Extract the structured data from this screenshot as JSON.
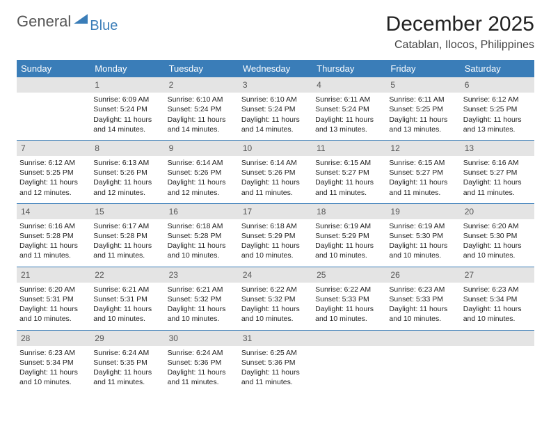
{
  "brand": {
    "part1": "General",
    "part2": "Blue"
  },
  "title": "December 2025",
  "subtitle": "Catablan, Ilocos, Philippines",
  "colors": {
    "accent": "#3a7db8",
    "header_bg": "#3a7db8",
    "daynum_bg": "#e4e4e4",
    "text": "#222222",
    "bg": "#ffffff"
  },
  "fonts": {
    "title_size": 30,
    "subtitle_size": 16,
    "header_size": 13,
    "cell_size": 10.5
  },
  "day_headers": [
    "Sunday",
    "Monday",
    "Tuesday",
    "Wednesday",
    "Thursday",
    "Friday",
    "Saturday"
  ],
  "weeks": [
    {
      "nums": [
        "",
        "1",
        "2",
        "3",
        "4",
        "5",
        "6"
      ],
      "cells": [
        {
          "sunrise": "",
          "sunset": "",
          "daylight": ""
        },
        {
          "sunrise": "Sunrise: 6:09 AM",
          "sunset": "Sunset: 5:24 PM",
          "daylight": "Daylight: 11 hours and 14 minutes."
        },
        {
          "sunrise": "Sunrise: 6:10 AM",
          "sunset": "Sunset: 5:24 PM",
          "daylight": "Daylight: 11 hours and 14 minutes."
        },
        {
          "sunrise": "Sunrise: 6:10 AM",
          "sunset": "Sunset: 5:24 PM",
          "daylight": "Daylight: 11 hours and 14 minutes."
        },
        {
          "sunrise": "Sunrise: 6:11 AM",
          "sunset": "Sunset: 5:24 PM",
          "daylight": "Daylight: 11 hours and 13 minutes."
        },
        {
          "sunrise": "Sunrise: 6:11 AM",
          "sunset": "Sunset: 5:25 PM",
          "daylight": "Daylight: 11 hours and 13 minutes."
        },
        {
          "sunrise": "Sunrise: 6:12 AM",
          "sunset": "Sunset: 5:25 PM",
          "daylight": "Daylight: 11 hours and 13 minutes."
        }
      ]
    },
    {
      "nums": [
        "7",
        "8",
        "9",
        "10",
        "11",
        "12",
        "13"
      ],
      "cells": [
        {
          "sunrise": "Sunrise: 6:12 AM",
          "sunset": "Sunset: 5:25 PM",
          "daylight": "Daylight: 11 hours and 12 minutes."
        },
        {
          "sunrise": "Sunrise: 6:13 AM",
          "sunset": "Sunset: 5:26 PM",
          "daylight": "Daylight: 11 hours and 12 minutes."
        },
        {
          "sunrise": "Sunrise: 6:14 AM",
          "sunset": "Sunset: 5:26 PM",
          "daylight": "Daylight: 11 hours and 12 minutes."
        },
        {
          "sunrise": "Sunrise: 6:14 AM",
          "sunset": "Sunset: 5:26 PM",
          "daylight": "Daylight: 11 hours and 11 minutes."
        },
        {
          "sunrise": "Sunrise: 6:15 AM",
          "sunset": "Sunset: 5:27 PM",
          "daylight": "Daylight: 11 hours and 11 minutes."
        },
        {
          "sunrise": "Sunrise: 6:15 AM",
          "sunset": "Sunset: 5:27 PM",
          "daylight": "Daylight: 11 hours and 11 minutes."
        },
        {
          "sunrise": "Sunrise: 6:16 AM",
          "sunset": "Sunset: 5:27 PM",
          "daylight": "Daylight: 11 hours and 11 minutes."
        }
      ]
    },
    {
      "nums": [
        "14",
        "15",
        "16",
        "17",
        "18",
        "19",
        "20"
      ],
      "cells": [
        {
          "sunrise": "Sunrise: 6:16 AM",
          "sunset": "Sunset: 5:28 PM",
          "daylight": "Daylight: 11 hours and 11 minutes."
        },
        {
          "sunrise": "Sunrise: 6:17 AM",
          "sunset": "Sunset: 5:28 PM",
          "daylight": "Daylight: 11 hours and 11 minutes."
        },
        {
          "sunrise": "Sunrise: 6:18 AM",
          "sunset": "Sunset: 5:28 PM",
          "daylight": "Daylight: 11 hours and 10 minutes."
        },
        {
          "sunrise": "Sunrise: 6:18 AM",
          "sunset": "Sunset: 5:29 PM",
          "daylight": "Daylight: 11 hours and 10 minutes."
        },
        {
          "sunrise": "Sunrise: 6:19 AM",
          "sunset": "Sunset: 5:29 PM",
          "daylight": "Daylight: 11 hours and 10 minutes."
        },
        {
          "sunrise": "Sunrise: 6:19 AM",
          "sunset": "Sunset: 5:30 PM",
          "daylight": "Daylight: 11 hours and 10 minutes."
        },
        {
          "sunrise": "Sunrise: 6:20 AM",
          "sunset": "Sunset: 5:30 PM",
          "daylight": "Daylight: 11 hours and 10 minutes."
        }
      ]
    },
    {
      "nums": [
        "21",
        "22",
        "23",
        "24",
        "25",
        "26",
        "27"
      ],
      "cells": [
        {
          "sunrise": "Sunrise: 6:20 AM",
          "sunset": "Sunset: 5:31 PM",
          "daylight": "Daylight: 11 hours and 10 minutes."
        },
        {
          "sunrise": "Sunrise: 6:21 AM",
          "sunset": "Sunset: 5:31 PM",
          "daylight": "Daylight: 11 hours and 10 minutes."
        },
        {
          "sunrise": "Sunrise: 6:21 AM",
          "sunset": "Sunset: 5:32 PM",
          "daylight": "Daylight: 11 hours and 10 minutes."
        },
        {
          "sunrise": "Sunrise: 6:22 AM",
          "sunset": "Sunset: 5:32 PM",
          "daylight": "Daylight: 11 hours and 10 minutes."
        },
        {
          "sunrise": "Sunrise: 6:22 AM",
          "sunset": "Sunset: 5:33 PM",
          "daylight": "Daylight: 11 hours and 10 minutes."
        },
        {
          "sunrise": "Sunrise: 6:23 AM",
          "sunset": "Sunset: 5:33 PM",
          "daylight": "Daylight: 11 hours and 10 minutes."
        },
        {
          "sunrise": "Sunrise: 6:23 AM",
          "sunset": "Sunset: 5:34 PM",
          "daylight": "Daylight: 11 hours and 10 minutes."
        }
      ]
    },
    {
      "nums": [
        "28",
        "29",
        "30",
        "31",
        "",
        "",
        ""
      ],
      "cells": [
        {
          "sunrise": "Sunrise: 6:23 AM",
          "sunset": "Sunset: 5:34 PM",
          "daylight": "Daylight: 11 hours and 10 minutes."
        },
        {
          "sunrise": "Sunrise: 6:24 AM",
          "sunset": "Sunset: 5:35 PM",
          "daylight": "Daylight: 11 hours and 11 minutes."
        },
        {
          "sunrise": "Sunrise: 6:24 AM",
          "sunset": "Sunset: 5:36 PM",
          "daylight": "Daylight: 11 hours and 11 minutes."
        },
        {
          "sunrise": "Sunrise: 6:25 AM",
          "sunset": "Sunset: 5:36 PM",
          "daylight": "Daylight: 11 hours and 11 minutes."
        },
        {
          "sunrise": "",
          "sunset": "",
          "daylight": ""
        },
        {
          "sunrise": "",
          "sunset": "",
          "daylight": ""
        },
        {
          "sunrise": "",
          "sunset": "",
          "daylight": ""
        }
      ]
    }
  ]
}
